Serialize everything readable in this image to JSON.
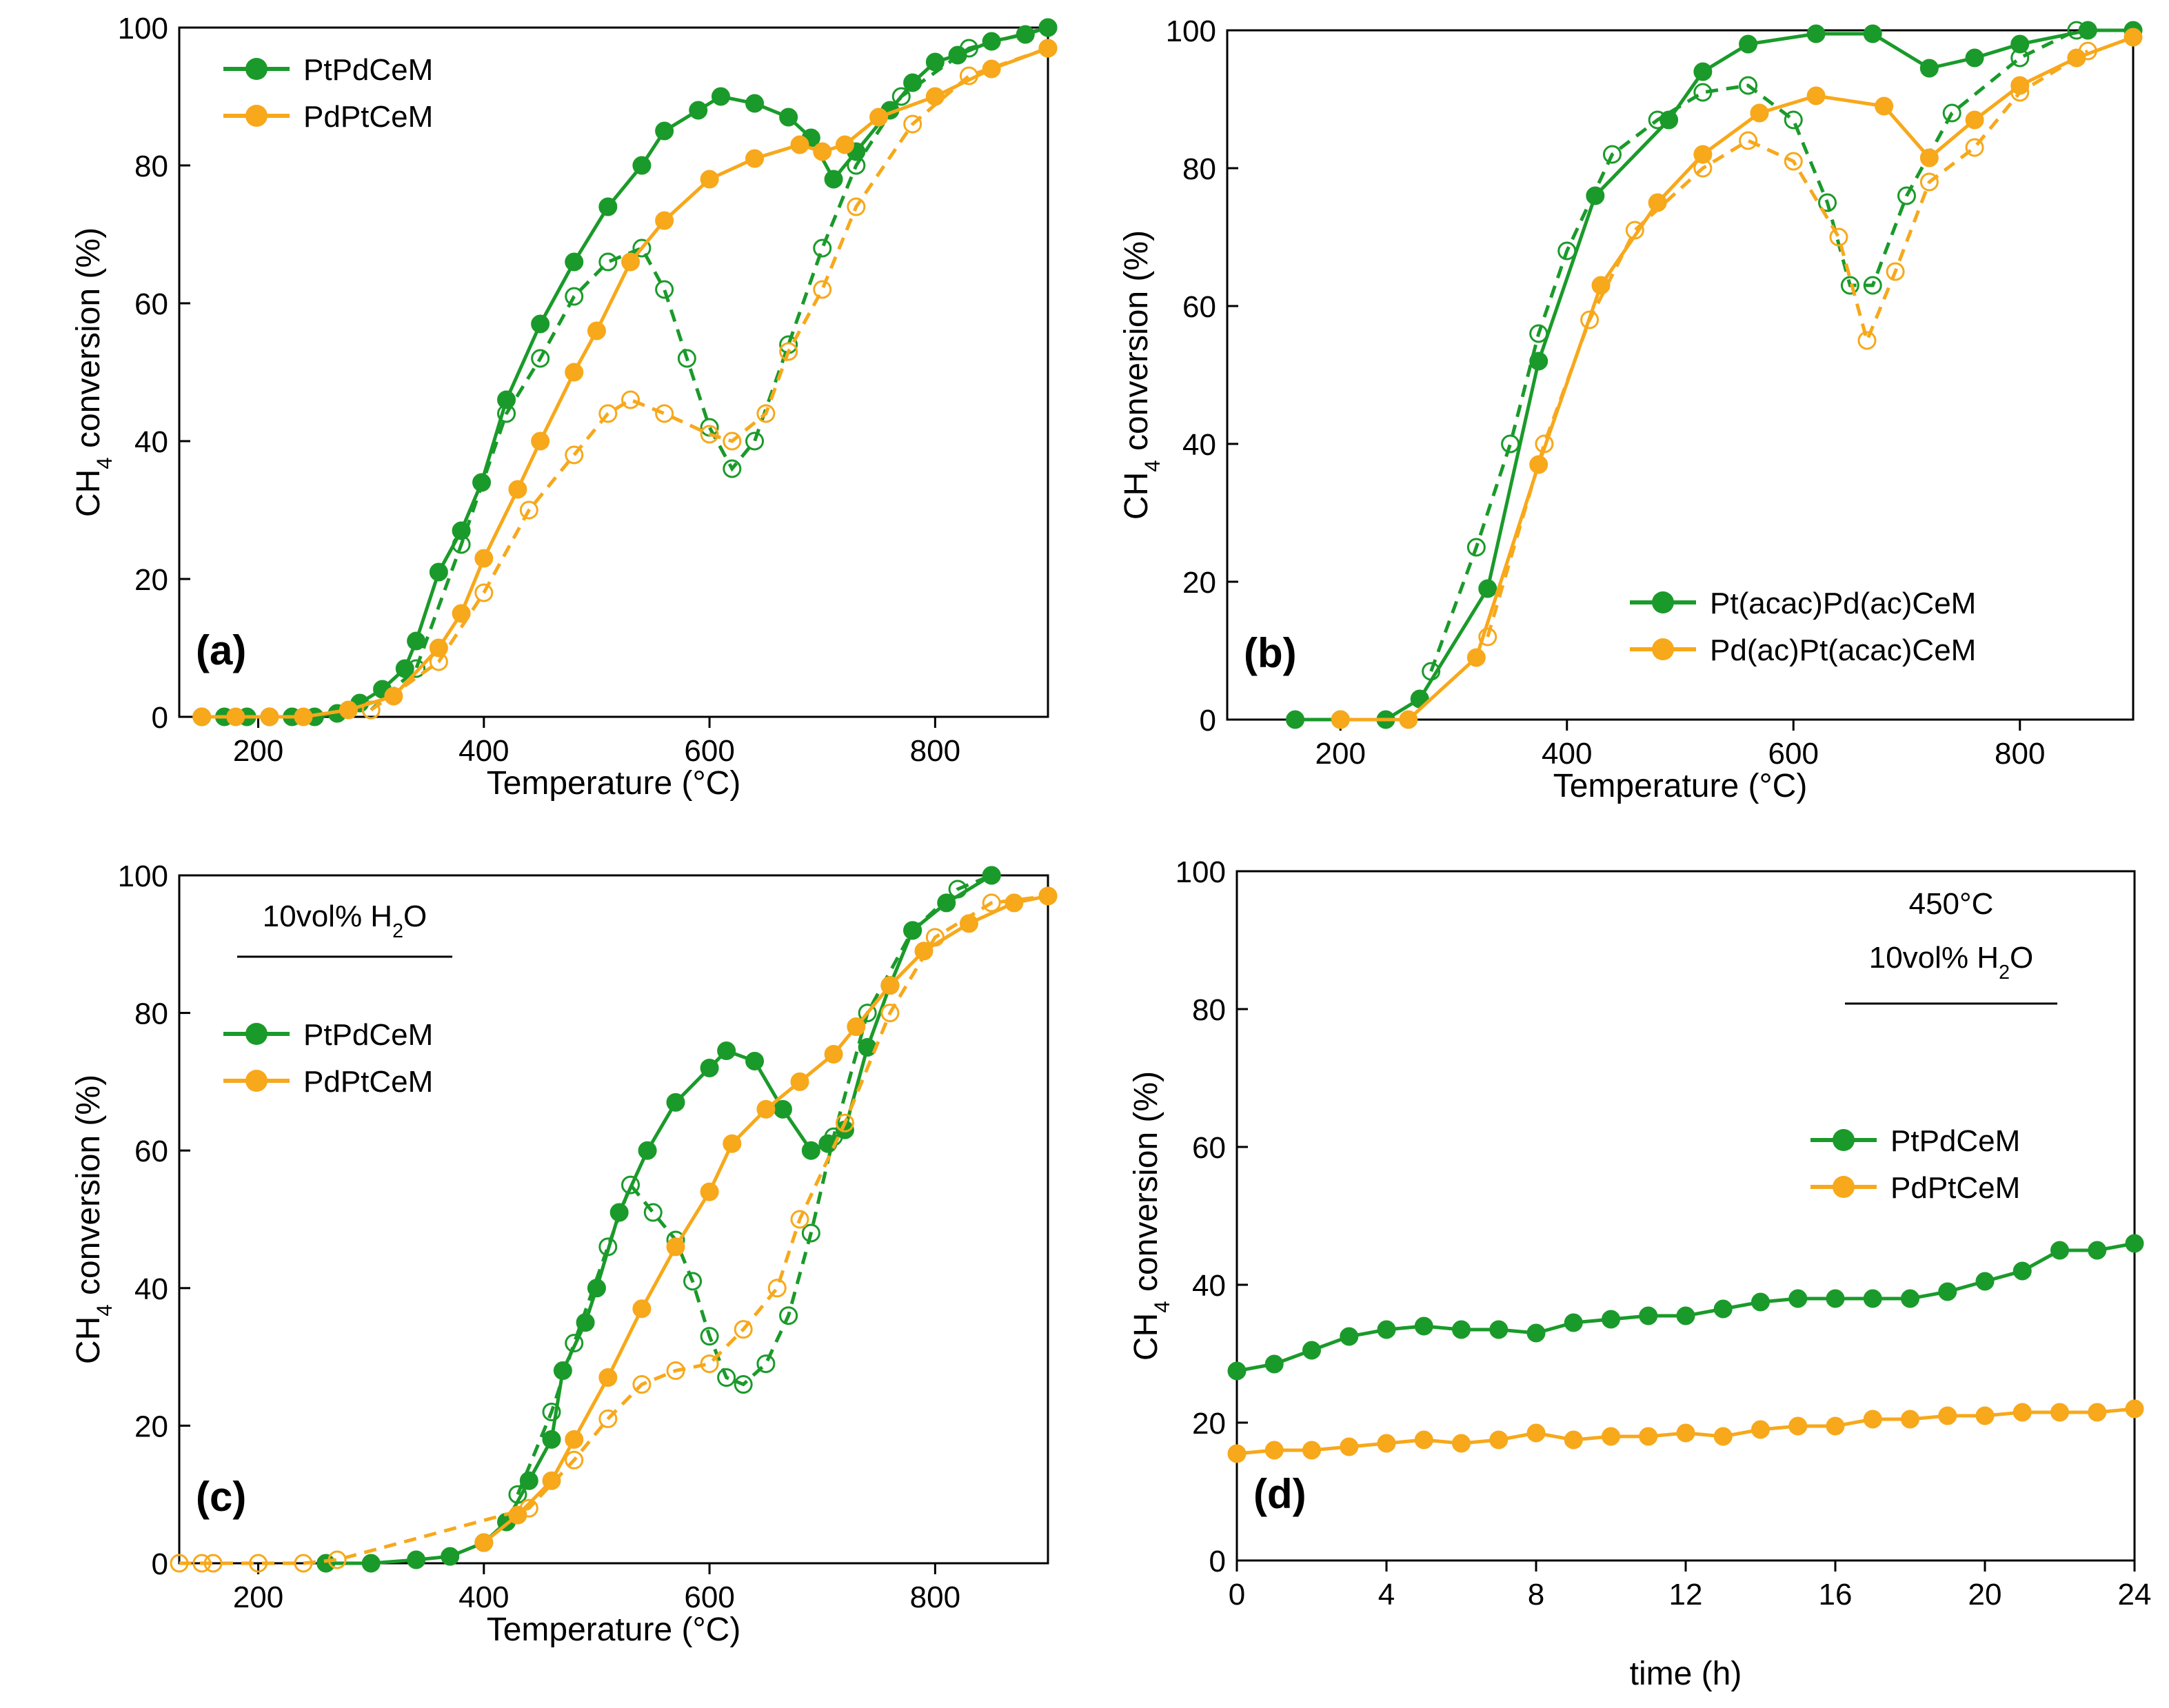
{
  "chart_data": [
    {
      "type": "line",
      "panel_label": "(a)",
      "xlabel": "Temperature (°C)",
      "ylabel": [
        "CH",
        "4",
        " conversion (%)"
      ],
      "xlim": [
        130,
        900
      ],
      "xticks": [
        200,
        400,
        600,
        800
      ],
      "ylim": [
        0,
        100
      ],
      "yticks": [
        0,
        20,
        40,
        60,
        80,
        100
      ],
      "legend": "upper left",
      "series": [
        {
          "name": "PtPdCeM",
          "color": "#1a9a2a",
          "line": "solid",
          "marker": "filled",
          "x": [
            150,
            170,
            190,
            210,
            230,
            250,
            270,
            290,
            310,
            330,
            340,
            360,
            380,
            398,
            420,
            450,
            480,
            510,
            540,
            560,
            590,
            610,
            640,
            670,
            690,
            710,
            730,
            760,
            780,
            800,
            820,
            850,
            880,
            900
          ],
          "values": [
            0,
            0,
            0,
            0,
            0,
            0,
            0.5,
            2,
            4,
            7,
            11,
            21,
            27,
            34,
            46,
            57,
            66,
            74,
            80,
            85,
            88,
            90,
            89,
            87,
            84,
            78,
            82,
            88,
            92,
            95,
            96,
            98,
            99,
            100
          ]
        },
        {
          "color": "#1a9a2a",
          "line": "dashed",
          "marker": "open",
          "x": [
            300,
            340,
            380,
            420,
            450,
            480,
            510,
            540,
            560,
            580,
            600,
            620,
            640,
            670,
            700,
            730,
            770,
            830,
            900
          ],
          "values": [
            1,
            7,
            25,
            44,
            52,
            61,
            66,
            68,
            62,
            52,
            42,
            36,
            40,
            54,
            68,
            80,
            90,
            97,
            100
          ]
        },
        {
          "name": "PdPtCeM",
          "color": "#f7a81b",
          "line": "solid",
          "marker": "filled",
          "x": [
            150,
            180,
            210,
            240,
            280,
            320,
            360,
            380,
            400,
            430,
            450,
            480,
            500,
            530,
            560,
            600,
            640,
            680,
            700,
            720,
            750,
            800,
            850,
            900
          ],
          "values": [
            0,
            0,
            0,
            0,
            1,
            3,
            10,
            15,
            23,
            33,
            40,
            50,
            56,
            66,
            72,
            78,
            81,
            83,
            82,
            83,
            87,
            90,
            94,
            97
          ]
        },
        {
          "color": "#f7a81b",
          "line": "dashed",
          "marker": "open",
          "x": [
            300,
            360,
            400,
            440,
            480,
            510,
            530,
            560,
            600,
            620,
            650,
            670,
            700,
            730,
            780,
            830,
            900
          ],
          "values": [
            1,
            8,
            18,
            30,
            38,
            44,
            46,
            44,
            41,
            40,
            44,
            53,
            62,
            74,
            86,
            93,
            97
          ]
        }
      ]
    },
    {
      "type": "line",
      "panel_label": "(b)",
      "xlabel": "Temperature (°C)",
      "ylabel": [
        "CH",
        "4",
        " conversion (%)"
      ],
      "xlim": [
        100,
        900
      ],
      "xticks": [
        200,
        400,
        600,
        800
      ],
      "ylim": [
        0,
        100
      ],
      "yticks": [
        0,
        20,
        40,
        60,
        80,
        100
      ],
      "legend": "lower right",
      "series": [
        {
          "name": "Pt(acac)Pd(ac)CeM",
          "color": "#1a9a2a",
          "line": "solid",
          "marker": "filled",
          "x": [
            160,
            200,
            240,
            270,
            330,
            375,
            425,
            490,
            520,
            560,
            620,
            670,
            720,
            760,
            800,
            860,
            900
          ],
          "values": [
            0,
            0,
            0,
            3,
            19,
            52,
            76,
            87,
            94,
            98,
            99.5,
            99.5,
            94.5,
            96,
            98,
            100,
            100
          ]
        },
        {
          "color": "#1a9a2a",
          "line": "dashed",
          "marker": "open",
          "x": [
            280,
            320,
            350,
            375,
            400,
            440,
            480,
            520,
            560,
            600,
            630,
            650,
            670,
            700,
            740,
            800,
            850
          ],
          "values": [
            7,
            25,
            40,
            56,
            68,
            82,
            87,
            91,
            92,
            87,
            75,
            63,
            63,
            76,
            88,
            96,
            100
          ]
        },
        {
          "name": "Pd(ac)Pt(acac)CeM",
          "color": "#f7a81b",
          "line": "solid",
          "marker": "filled",
          "x": [
            200,
            260,
            320,
            375,
            430,
            480,
            520,
            570,
            620,
            680,
            720,
            760,
            800,
            850,
            900
          ],
          "values": [
            0,
            0,
            9,
            37,
            63,
            75,
            82,
            88,
            90.5,
            89,
            81.5,
            87,
            92,
            96,
            99
          ]
        },
        {
          "color": "#f7a81b",
          "line": "dashed",
          "marker": "open",
          "x": [
            330,
            380,
            420,
            460,
            520,
            560,
            600,
            640,
            665,
            690,
            720,
            760,
            800,
            860
          ],
          "values": [
            12,
            40,
            58,
            71,
            80,
            84,
            81,
            70,
            55,
            65,
            78,
            83,
            91,
            97
          ]
        }
      ]
    },
    {
      "type": "line",
      "panel_label": "(c)",
      "xlabel": "Temperature (°C)",
      "ylabel": [
        "CH",
        "4",
        " conversion (%)"
      ],
      "annotations": [
        [
          "10vol% H",
          "2",
          "O"
        ]
      ],
      "xlim": [
        130,
        900
      ],
      "xticks": [
        200,
        400,
        600,
        800
      ],
      "ylim": [
        0,
        100
      ],
      "yticks": [
        0,
        20,
        40,
        60,
        80,
        100
      ],
      "legend": "center left",
      "series": [
        {
          "name": "PtPdCeM",
          "color": "#1a9a2a",
          "line": "solid",
          "marker": "filled",
          "x": [
            260,
            300,
            340,
            370,
            400,
            420,
            440,
            460,
            470,
            490,
            500,
            520,
            545,
            570,
            600,
            615,
            640,
            665,
            690,
            705,
            720,
            740,
            760,
            780,
            810,
            850
          ],
          "values": [
            0,
            0,
            0.5,
            1,
            3,
            6,
            12,
            18,
            28,
            35,
            40,
            51,
            60,
            67,
            72,
            74.5,
            73,
            66,
            60,
            61,
            63,
            75,
            84,
            92,
            96,
            100
          ]
        },
        {
          "color": "#1a9a2a",
          "line": "dashed",
          "marker": "open",
          "x": [
            430,
            460,
            480,
            510,
            530,
            550,
            570,
            585,
            600,
            615,
            630,
            650,
            670,
            690,
            710,
            740,
            780,
            820,
            850
          ],
          "values": [
            10,
            22,
            32,
            46,
            55,
            51,
            47,
            41,
            33,
            27,
            26,
            29,
            36,
            48,
            62,
            80,
            92,
            98,
            100
          ]
        },
        {
          "name": "PdPtCeM",
          "color": "#f7a81b",
          "line": "solid",
          "marker": "filled",
          "x": [
            400,
            430,
            460,
            480,
            510,
            540,
            570,
            600,
            620,
            650,
            680,
            710,
            730,
            760,
            790,
            830,
            870,
            900
          ],
          "values": [
            3,
            7,
            12,
            18,
            27,
            37,
            46,
            54,
            61,
            66,
            70,
            74,
            78,
            84,
            89,
            93,
            96,
            97
          ]
        },
        {
          "color": "#f7a81b",
          "line": "dashed",
          "marker": "open",
          "x": [
            130,
            150,
            160,
            200,
            240,
            270,
            440,
            480,
            510,
            540,
            570,
            600,
            630,
            660,
            680,
            720,
            760,
            800,
            850,
            900
          ],
          "values": [
            0,
            0,
            0,
            0,
            0,
            0.5,
            8,
            15,
            21,
            26,
            28,
            29,
            34,
            40,
            50,
            64,
            80,
            91,
            96,
            97
          ]
        }
      ]
    },
    {
      "type": "line",
      "panel_label": "(d)",
      "xlabel": "time (h)",
      "ylabel": [
        "CH",
        "4",
        " conversion (%)"
      ],
      "annotations": [
        [
          "450°C"
        ],
        [
          "10vol% H",
          "2",
          "O"
        ]
      ],
      "xlim": [
        0,
        24
      ],
      "xticks": [
        0,
        4,
        8,
        12,
        16,
        20,
        24
      ],
      "ylim": [
        0,
        100
      ],
      "yticks": [
        0,
        20,
        40,
        60,
        80,
        100
      ],
      "legend": "center right",
      "series": [
        {
          "name": "PtPdCeM",
          "color": "#1a9a2a",
          "line": "solid",
          "marker": "filled",
          "x": [
            0,
            1,
            2,
            3,
            4,
            5,
            6,
            7,
            8,
            9,
            10,
            11,
            12,
            13,
            14,
            15,
            16,
            17,
            18,
            19,
            20,
            21,
            22,
            23,
            24
          ],
          "values": [
            27.5,
            28.5,
            30.5,
            32.5,
            33.5,
            34,
            33.5,
            33.5,
            33,
            34.5,
            35,
            35.5,
            35.5,
            36.5,
            37.5,
            38,
            38,
            38,
            38,
            39,
            40.5,
            42,
            45,
            45,
            46
          ]
        },
        {
          "name": "PdPtCeM",
          "color": "#f7a81b",
          "line": "solid",
          "marker": "filled",
          "x": [
            0,
            1,
            2,
            3,
            4,
            5,
            6,
            7,
            8,
            9,
            10,
            11,
            12,
            13,
            14,
            15,
            16,
            17,
            18,
            19,
            20,
            21,
            22,
            23,
            24
          ],
          "values": [
            15.5,
            16,
            16,
            16.5,
            17,
            17.5,
            17,
            17.5,
            18.5,
            17.5,
            18,
            18,
            18.5,
            18,
            19,
            19.5,
            19.5,
            20.5,
            20.5,
            21,
            21,
            21.5,
            21.5,
            21.5,
            22
          ]
        }
      ]
    }
  ]
}
